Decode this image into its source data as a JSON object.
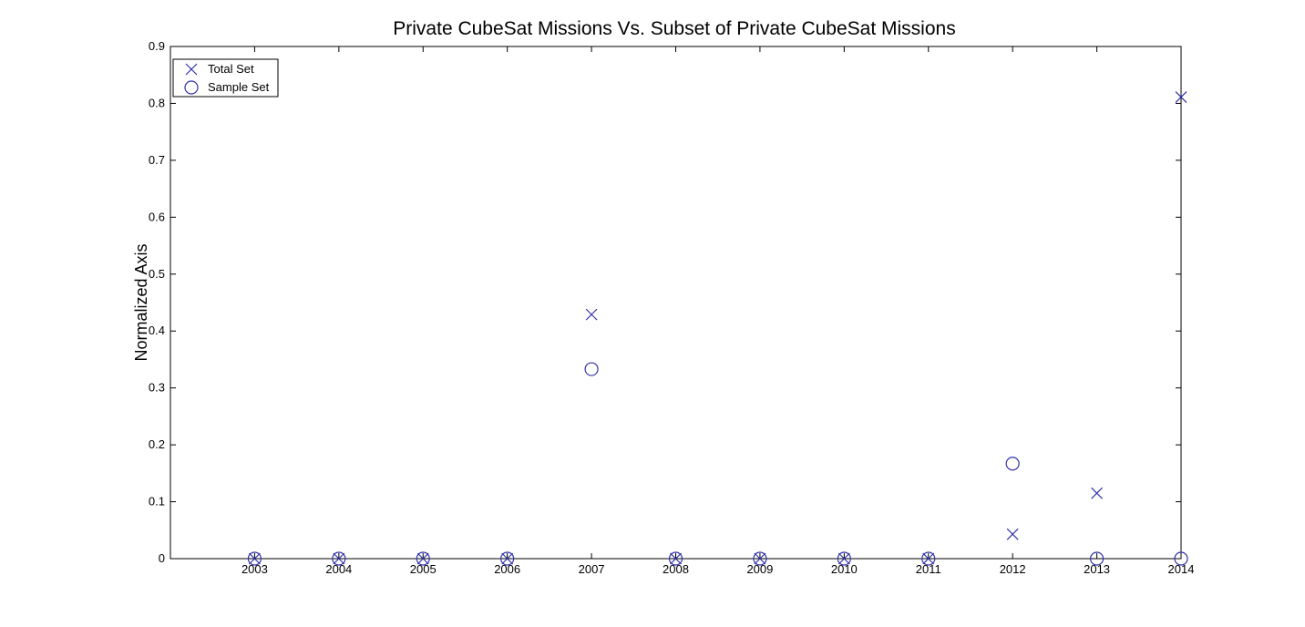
{
  "chart_data": {
    "type": "scatter",
    "title": "Private CubeSat Missions Vs. Subset of Private CubeSat Missions",
    "xlabel": "",
    "ylabel": "Normalized Axis",
    "x": [
      2003,
      2004,
      2005,
      2006,
      2007,
      2008,
      2009,
      2010,
      2011,
      2012,
      2013,
      2014
    ],
    "xlim": [
      2002,
      2014
    ],
    "ylim": [
      0,
      0.9
    ],
    "yticks": [
      "0",
      "0.1",
      "0.2",
      "0.3",
      "0.4",
      "0.5",
      "0.6",
      "0.7",
      "0.8",
      "0.9"
    ],
    "xticks": [
      "2003",
      "2004",
      "2005",
      "2006",
      "2007",
      "2008",
      "2009",
      "2010",
      "2011",
      "2012",
      "2013",
      "2014"
    ],
    "grid": false,
    "legend_position": "top-left",
    "series": [
      {
        "name": "Total Set",
        "marker": "x",
        "color": "#3333aa",
        "values": [
          0,
          0,
          0,
          0,
          0.429,
          0,
          0,
          0,
          0,
          0.043,
          0.115,
          0.811
        ]
      },
      {
        "name": "Sample Set",
        "marker": "o",
        "color": "#3333aa",
        "values": [
          0,
          0,
          0,
          0,
          0.333,
          0,
          0,
          0,
          0,
          0.167,
          0,
          0
        ]
      }
    ]
  }
}
